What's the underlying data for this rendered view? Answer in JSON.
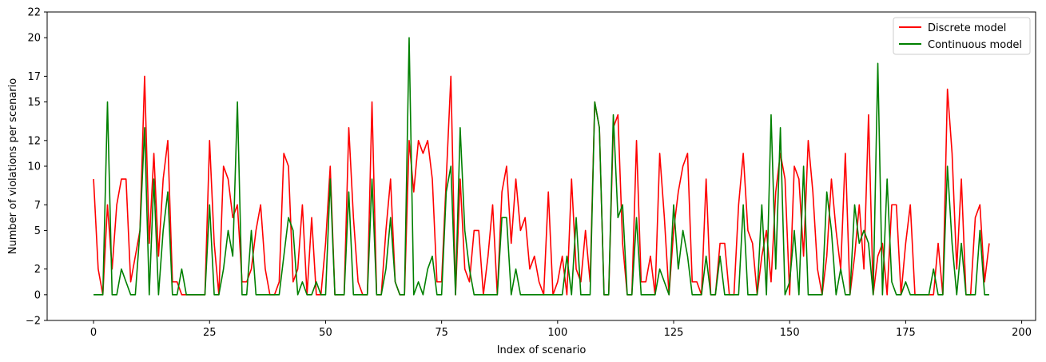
{
  "chart_data": {
    "type": "line",
    "xlabel": "Index of scenario",
    "ylabel": "Number of violations per scenario",
    "xlim": [
      -10,
      203
    ],
    "ylim": [
      -2,
      22
    ],
    "xticks": [
      0,
      25,
      50,
      75,
      100,
      125,
      150,
      175,
      200
    ],
    "xtick_labels": [
      "0",
      "25",
      "50",
      "75",
      "100",
      "125",
      "150",
      "175",
      "200"
    ],
    "yticks": [
      -2,
      0,
      2,
      5,
      7,
      10,
      12,
      15,
      17,
      20,
      22
    ],
    "ytick_labels": [
      "−2",
      "0",
      "2",
      "5",
      "7",
      "10",
      "12",
      "15",
      "17",
      "20",
      "22"
    ],
    "legend_position": "top-right",
    "grid": false,
    "x_start": 0,
    "series": [
      {
        "name": "Discrete model",
        "color": "#ff0000",
        "values": [
          9,
          2,
          0,
          7,
          2,
          7,
          9,
          9,
          1,
          3,
          5,
          17,
          4,
          11,
          3,
          9,
          12,
          1,
          1,
          0,
          0,
          0,
          0,
          0,
          0,
          12,
          4,
          0,
          10,
          9,
          6,
          7,
          1,
          1,
          2,
          5,
          7,
          2,
          0,
          0,
          1,
          11,
          10,
          1,
          2,
          7,
          0,
          6,
          0,
          0,
          4,
          10,
          0,
          0,
          0,
          13,
          6,
          1,
          0,
          0,
          15,
          0,
          0,
          5,
          9,
          1,
          0,
          0,
          12,
          8,
          12,
          11,
          12,
          9,
          1,
          1,
          9,
          17,
          0,
          9,
          2,
          1,
          5,
          5,
          0,
          3,
          7,
          0,
          8,
          10,
          4,
          9,
          5,
          6,
          2,
          3,
          1,
          0,
          8,
          0,
          1,
          3,
          0,
          9,
          2,
          1,
          5,
          1,
          15,
          13,
          0,
          0,
          13,
          14,
          4,
          0,
          0,
          12,
          1,
          1,
          3,
          0,
          11,
          6,
          0,
          5,
          8,
          10,
          11,
          1,
          1,
          0,
          9,
          0,
          0,
          4,
          4,
          0,
          0,
          7,
          11,
          5,
          4,
          0,
          3,
          5,
          1,
          8,
          11,
          9,
          0,
          10,
          9,
          3,
          12,
          8,
          2,
          0,
          3,
          9,
          5,
          2,
          11,
          0,
          3,
          7,
          2,
          14,
          0,
          3,
          4,
          0,
          7,
          7,
          0,
          4,
          7,
          0,
          0,
          0,
          0,
          0,
          4,
          0,
          16,
          11,
          2,
          9,
          0,
          0,
          6,
          7,
          1,
          4
        ]
      },
      {
        "name": "Continuous model",
        "color": "#008000",
        "values": [
          0,
          0,
          0,
          15,
          0,
          0,
          2,
          1,
          0,
          0,
          5,
          13,
          0,
          9,
          0,
          5,
          8,
          0,
          0,
          2,
          0,
          0,
          0,
          0,
          0,
          7,
          0,
          0,
          2,
          5,
          3,
          15,
          0,
          0,
          5,
          0,
          0,
          0,
          0,
          0,
          0,
          3,
          6,
          5,
          0,
          1,
          0,
          0,
          1,
          0,
          0,
          9,
          0,
          0,
          0,
          8,
          0,
          0,
          0,
          0,
          9,
          0,
          0,
          2,
          6,
          1,
          0,
          0,
          20,
          0,
          1,
          0,
          2,
          3,
          0,
          0,
          8,
          10,
          0,
          13,
          5,
          2,
          0,
          0,
          0,
          0,
          0,
          0,
          6,
          6,
          0,
          2,
          0,
          0,
          0,
          0,
          0,
          0,
          0,
          0,
          0,
          0,
          3,
          0,
          6,
          0,
          0,
          0,
          15,
          13,
          0,
          0,
          14,
          6,
          7,
          0,
          0,
          6,
          0,
          0,
          0,
          0,
          2,
          1,
          0,
          7,
          2,
          5,
          3,
          0,
          0,
          0,
          3,
          0,
          0,
          3,
          0,
          0,
          0,
          0,
          7,
          0,
          0,
          0,
          7,
          0,
          14,
          2,
          13,
          0,
          1,
          5,
          0,
          10,
          0,
          0,
          0,
          0,
          8,
          5,
          0,
          2,
          0,
          0,
          7,
          4,
          5,
          4,
          0,
          18,
          0,
          9,
          1,
          0,
          0,
          1,
          0,
          0,
          0,
          0,
          0,
          2,
          0,
          0,
          10,
          4,
          0,
          4,
          0,
          0,
          0,
          5,
          0,
          0
        ]
      }
    ]
  }
}
